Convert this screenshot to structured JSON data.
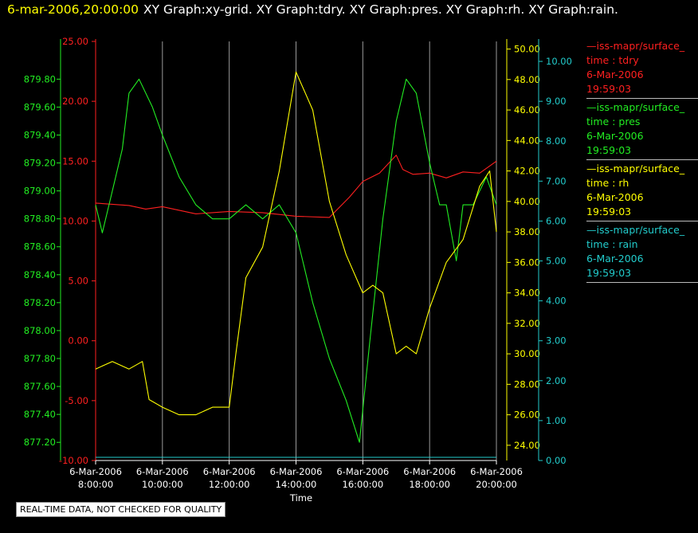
{
  "header": {
    "timestamp": "6-mar-2006,20:00:00",
    "titles": "XY Graph:xy-grid.  XY Graph:tdry.  XY Graph:pres.  XY Graph:rh.  XY Graph:rain."
  },
  "qa_note": "REAL-TIME DATA, NOT CHECKED FOR QUALITY",
  "legend": [
    {
      "source": "—iss-mapr/surface_",
      "key": "time : tdry",
      "date": "6-Mar-2006",
      "time": "19:59:03",
      "color": "#ff2020"
    },
    {
      "source": "—iss-mapr/surface_",
      "key": "time : pres",
      "date": "6-Mar-2006",
      "time": "19:59:03",
      "color": "#22ee22"
    },
    {
      "source": "—iss-mapr/surface_",
      "key": "time : rh",
      "date": "6-Mar-2006",
      "time": "19:59:03",
      "color": "#ffff00"
    },
    {
      "source": "—iss-mapr/surface_",
      "key": "time : rain",
      "date": "6-Mar-2006",
      "time": "19:59:03",
      "color": "#22cccc"
    }
  ],
  "chart_data": {
    "type": "line",
    "xlabel": "Time",
    "x_ticks": [
      {
        "date": "6-Mar-2006",
        "time": "8:00:00",
        "hour": 8
      },
      {
        "date": "6-Mar-2006",
        "time": "10:00:00",
        "hour": 10
      },
      {
        "date": "6-Mar-2006",
        "time": "12:00:00",
        "hour": 12
      },
      {
        "date": "6-Mar-2006",
        "time": "14:00:00",
        "hour": 14
      },
      {
        "date": "6-Mar-2006",
        "time": "16:00:00",
        "hour": 16
      },
      {
        "date": "6-Mar-2006",
        "time": "18:00:00",
        "hour": 18
      },
      {
        "date": "6-Mar-2006",
        "time": "20:00:00",
        "hour": 20
      }
    ],
    "xlim_hours": [
      8,
      20
    ],
    "grid": "vertical",
    "axes": {
      "tdry": {
        "color": "#ff2020",
        "ylim": [
          -10,
          25
        ],
        "ticks": [
          "-10.00",
          "-5.00",
          "0.00",
          "5.00",
          "10.00",
          "15.00",
          "20.00",
          "25.00"
        ]
      },
      "pres": {
        "color": "#22ee22",
        "ylim": [
          877.07,
          880.07
        ],
        "ticks": [
          "877.20",
          "877.40",
          "877.60",
          "877.80",
          "878.00",
          "878.20",
          "878.40",
          "878.60",
          "878.80",
          "879.00",
          "879.20",
          "879.40",
          "879.60",
          "879.80"
        ]
      },
      "rh": {
        "color": "#ffff00",
        "ylim": [
          23,
          50.5
        ],
        "ticks": [
          "24.00",
          "26.00",
          "28.00",
          "30.00",
          "32.00",
          "34.00",
          "36.00",
          "38.00",
          "40.00",
          "42.00",
          "44.00",
          "46.00",
          "48.00",
          "50.00"
        ]
      },
      "rain": {
        "color": "#22cccc",
        "ylim": [
          0,
          10.5
        ],
        "ticks": [
          "0.00",
          "1.00",
          "2.00",
          "3.00",
          "4.00",
          "5.00",
          "6.00",
          "7.00",
          "8.00",
          "9.00",
          "10.00"
        ]
      }
    },
    "series": [
      {
        "name": "tdry",
        "axis": "tdry",
        "color": "#ff2020",
        "x": [
          8.0,
          9.0,
          9.5,
          10.0,
          11.0,
          12.0,
          13.0,
          14.0,
          15.0,
          15.6,
          16.0,
          16.5,
          17.0,
          17.2,
          17.5,
          18.0,
          18.5,
          19.0,
          19.5,
          20.0
        ],
        "y": [
          11.5,
          11.3,
          11.0,
          11.2,
          10.6,
          10.8,
          10.7,
          10.4,
          10.3,
          12.0,
          13.3,
          14.0,
          15.5,
          14.3,
          13.9,
          14.0,
          13.6,
          14.1,
          14.0,
          15.0
        ]
      },
      {
        "name": "pres",
        "axis": "pres",
        "color": "#22ee22",
        "x": [
          8.0,
          8.2,
          8.5,
          8.8,
          9.0,
          9.3,
          9.7,
          10.0,
          10.5,
          11.0,
          11.5,
          12.0,
          12.5,
          13.0,
          13.5,
          14.0,
          14.5,
          15.0,
          15.5,
          15.9,
          16.2,
          16.6,
          17.0,
          17.3,
          17.6,
          18.0,
          18.3,
          18.5,
          18.8,
          19.0,
          19.3,
          19.5,
          19.7,
          20.0
        ],
        "y": [
          878.9,
          878.7,
          879.0,
          879.3,
          879.7,
          879.8,
          879.6,
          879.4,
          879.1,
          878.9,
          878.8,
          878.8,
          878.9,
          878.8,
          878.9,
          878.7,
          878.2,
          877.8,
          877.5,
          877.2,
          877.9,
          878.8,
          879.5,
          879.8,
          879.7,
          879.2,
          878.9,
          878.9,
          878.5,
          878.9,
          878.9,
          879.0,
          879.1,
          878.9
        ]
      },
      {
        "name": "rh",
        "axis": "rh",
        "color": "#ffff00",
        "x": [
          8.0,
          8.5,
          9.0,
          9.4,
          9.6,
          10.0,
          10.5,
          11.0,
          11.5,
          12.0,
          12.2,
          12.5,
          13.0,
          13.5,
          14.0,
          14.5,
          15.0,
          15.5,
          16.0,
          16.3,
          16.6,
          17.0,
          17.3,
          17.6,
          18.0,
          18.5,
          19.0,
          19.5,
          19.8,
          20.0
        ],
        "y": [
          29.0,
          29.5,
          29.0,
          29.5,
          27.0,
          26.5,
          26.0,
          26.0,
          26.5,
          26.5,
          30.0,
          35.0,
          37.0,
          42.0,
          48.5,
          46.0,
          40.0,
          36.5,
          34.0,
          34.5,
          34.0,
          30.0,
          30.5,
          30.0,
          33.0,
          36.0,
          37.5,
          41.0,
          42.0,
          38.0
        ]
      },
      {
        "name": "rain",
        "axis": "rain",
        "color": "#22cccc",
        "x": [
          8.0,
          20.0
        ],
        "y": [
          0.0,
          0.0
        ]
      }
    ]
  }
}
